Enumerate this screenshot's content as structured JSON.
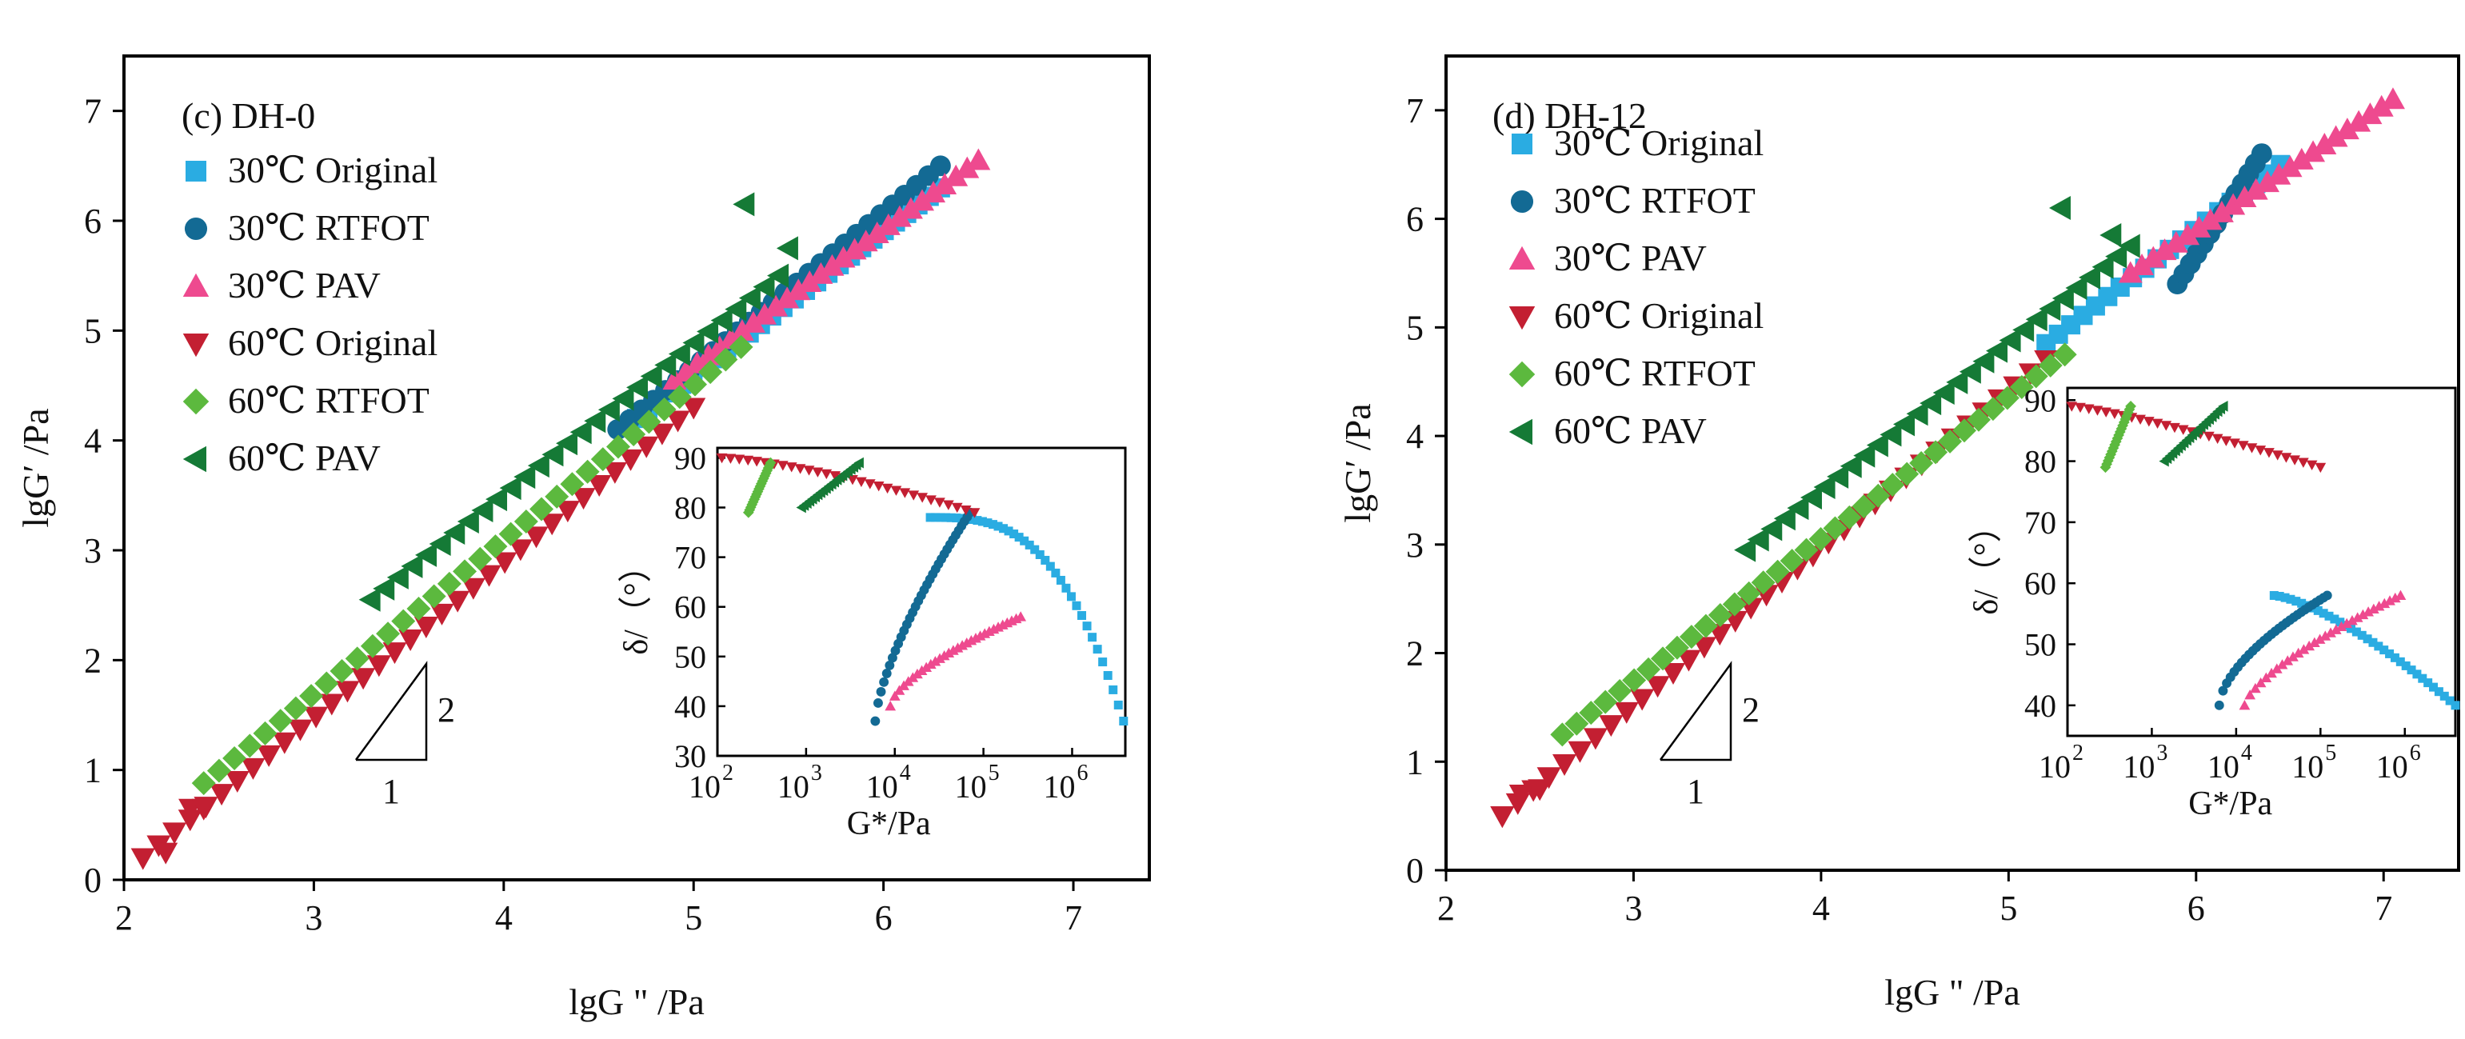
{
  "chart_data": [
    {
      "type": "scatter",
      "panel_label": "(c)  DH-0",
      "xlabel": "lgG \" /Pa",
      "ylabel": "lgG′  /Pa",
      "xlim": [
        2.0,
        7.4
      ],
      "ylim": [
        0,
        7.5
      ],
      "xticks": [
        2,
        3,
        4,
        5,
        6,
        7
      ],
      "yticks": [
        0,
        1,
        2,
        3,
        4,
        5,
        6,
        7
      ],
      "slope_triangle": {
        "rise_label": "2",
        "run_label": "1"
      },
      "legend": [
        "30℃ Original",
        "30℃ RTFOT",
        "30℃ PAV",
        "60℃ Original",
        "60℃ RTFOT",
        "60℃ PAV"
      ],
      "series": [
        {
          "name": "30℃ Original",
          "color": "#2aace2",
          "marker": "square",
          "x_start": 4.7,
          "x_end": 6.3,
          "y_start": 4.2,
          "y_end": 6.3,
          "n": 28
        },
        {
          "name": "30℃ RTFOT",
          "color": "#136a94",
          "marker": "circle",
          "x_start": 4.6,
          "x_end": 6.3,
          "y_start": 4.1,
          "y_end": 6.5,
          "n": 28
        },
        {
          "name": "30℃ PAV",
          "color": "#ee4a8f",
          "marker": "triangle-up",
          "x_start": 4.9,
          "x_end": 6.5,
          "y_start": 4.55,
          "y_end": 6.55,
          "n": 28
        },
        {
          "name": "60℃ Original",
          "color": "#c31f32",
          "marker": "triangle-down",
          "x_start": 2.1,
          "x_end": 5.0,
          "y_start": 0.2,
          "y_end": 4.3,
          "n": 36,
          "extra": [
            [
              2.1,
              0.2
            ],
            [
              2.22,
              0.25
            ],
            [
              2.35,
              0.65
            ],
            [
              2.42,
              0.65
            ]
          ]
        },
        {
          "name": "60℃ RTFOT",
          "color": "#5cb93e",
          "marker": "diamond",
          "x_start": 2.42,
          "x_end": 5.25,
          "y_start": 0.88,
          "y_end": 4.85,
          "n": 36
        },
        {
          "name": "60℃ PAV",
          "color": "#157a36",
          "marker": "triangle-left",
          "x_start": 3.3,
          "x_end": 5.45,
          "y_start": 2.55,
          "y_end": 5.5,
          "n": 30,
          "extra": [
            [
              5.27,
              6.15
            ],
            [
              5.5,
              5.75
            ]
          ]
        }
      ],
      "inset": {
        "xlabel": "G*/Pa",
        "ylabel": "δ/（°）",
        "xlog_range": [
          2,
          6.6
        ],
        "ylim": [
          30,
          92
        ],
        "yticks": [
          30,
          40,
          50,
          60,
          70,
          80,
          90
        ],
        "xtick_labels": [
          {
            "base": "10",
            "exp": "2"
          },
          {
            "base": "10",
            "exp": "3"
          },
          {
            "base": "10",
            "exp": "4"
          },
          {
            "base": "10",
            "exp": "5"
          },
          {
            "base": "10",
            "exp": "6"
          }
        ],
        "series": [
          {
            "name": "30℃ Original",
            "color": "#2aace2",
            "marker": "square",
            "logx_start": 4.4,
            "logx_end": 6.58,
            "y_start": 78,
            "y_end": 37,
            "curve": 3.0,
            "n": 38
          },
          {
            "name": "30℃ RTFOT",
            "color": "#136a94",
            "marker": "circle",
            "logx_start": 3.78,
            "logx_end": 4.85,
            "y_start": 37,
            "y_end": 79,
            "curve": 0.7,
            "n": 34
          },
          {
            "name": "30℃ PAV",
            "color": "#ee4a8f",
            "marker": "triangle-up",
            "logx_start": 3.95,
            "logx_end": 5.42,
            "y_start": 40,
            "y_end": 58,
            "curve": 0.65,
            "n": 30
          },
          {
            "name": "60℃ Original",
            "color": "#c31f32",
            "marker": "triangle-down",
            "logx_start": 2.05,
            "logx_end": 4.9,
            "y_start": 90,
            "y_end": 79,
            "curve": 1.4,
            "n": 30
          },
          {
            "name": "60℃ RTFOT",
            "color": "#5cb93e",
            "marker": "diamond",
            "logx_start": 2.35,
            "logx_end": 2.6,
            "y_start": 79,
            "y_end": 89,
            "curve": 1.0,
            "n": 20
          },
          {
            "name": "60℃ PAV",
            "color": "#157a36",
            "marker": "triangle-left",
            "logx_start": 2.95,
            "logx_end": 3.6,
            "y_start": 80,
            "y_end": 89,
            "curve": 1.0,
            "n": 22
          }
        ]
      }
    },
    {
      "type": "scatter",
      "panel_label": "(d) DH-12",
      "xlabel": "lgG \" /Pa",
      "ylabel": "lgG′  /Pa",
      "xlim": [
        2.0,
        7.4
      ],
      "ylim": [
        0,
        7.5
      ],
      "xticks": [
        2,
        3,
        4,
        5,
        6,
        7
      ],
      "yticks": [
        0,
        1,
        2,
        3,
        4,
        5,
        6,
        7
      ],
      "slope_triangle": {
        "rise_label": "2",
        "run_label": "1"
      },
      "legend": [
        "30℃ Original",
        "30℃ RTFOT",
        "30℃ PAV",
        "60℃ Original",
        "60℃ RTFOT",
        "60℃ PAV"
      ],
      "series": [
        {
          "name": "30℃ Original",
          "color": "#2aace2",
          "marker": "square",
          "x_start": 5.2,
          "x_end": 6.45,
          "y_start": 4.85,
          "y_end": 6.5,
          "n": 20
        },
        {
          "name": "30℃ RTFOT",
          "color": "#136a94",
          "marker": "circle",
          "x_start": 5.9,
          "x_end": 6.35,
          "y_start": 5.4,
          "y_end": 6.6,
          "n": 14
        },
        {
          "name": "30℃ PAV",
          "color": "#ee4a8f",
          "marker": "triangle-up",
          "x_start": 5.65,
          "x_end": 7.05,
          "y_start": 5.5,
          "y_end": 7.1,
          "n": 24
        },
        {
          "name": "60℃ Original",
          "color": "#c31f32",
          "marker": "triangle-down",
          "x_start": 2.3,
          "x_end": 5.2,
          "y_start": 0.5,
          "y_end": 4.7,
          "n": 36,
          "extra": [
            [
              2.3,
              0.5
            ],
            [
              2.4,
              0.7
            ],
            [
              2.5,
              0.75
            ]
          ]
        },
        {
          "name": "60℃ RTFOT",
          "color": "#5cb93e",
          "marker": "diamond",
          "x_start": 2.62,
          "x_end": 5.3,
          "y_start": 1.25,
          "y_end": 4.75,
          "n": 36
        },
        {
          "name": "60℃ PAV",
          "color": "#157a36",
          "marker": "triangle-left",
          "x_start": 3.6,
          "x_end": 5.65,
          "y_start": 2.95,
          "y_end": 5.75,
          "n": 30,
          "extra": [
            [
              5.28,
              6.1
            ],
            [
              5.55,
              5.85
            ]
          ]
        }
      ],
      "inset": {
        "xlabel": "G*/Pa",
        "ylabel": "δ/（°）",
        "xlog_range": [
          2,
          6.6
        ],
        "ylim": [
          35,
          92
        ],
        "yticks": [
          40,
          50,
          60,
          70,
          80,
          90
        ],
        "xtick_labels": [
          {
            "base": "10",
            "exp": "2"
          },
          {
            "base": "10",
            "exp": "3"
          },
          {
            "base": "10",
            "exp": "4"
          },
          {
            "base": "10",
            "exp": "5"
          },
          {
            "base": "10",
            "exp": "6"
          }
        ],
        "series": [
          {
            "name": "30℃ Original",
            "color": "#2aace2",
            "marker": "square",
            "logx_start": 4.45,
            "logx_end": 6.6,
            "y_start": 58,
            "y_end": 40,
            "curve": 1.4,
            "n": 34
          },
          {
            "name": "30℃ RTFOT",
            "color": "#136a94",
            "marker": "circle",
            "logx_start": 3.8,
            "logx_end": 5.08,
            "y_start": 40,
            "y_end": 58,
            "curve": 0.6,
            "n": 30
          },
          {
            "name": "30℃ PAV",
            "color": "#ee4a8f",
            "marker": "triangle-up",
            "logx_start": 4.1,
            "logx_end": 5.95,
            "y_start": 40,
            "y_end": 58,
            "curve": 0.7,
            "n": 30
          },
          {
            "name": "60℃ Original",
            "color": "#c31f32",
            "marker": "triangle-down",
            "logx_start": 2.05,
            "logx_end": 5.0,
            "y_start": 89,
            "y_end": 79,
            "curve": 1.2,
            "n": 30
          },
          {
            "name": "60℃ RTFOT",
            "color": "#5cb93e",
            "marker": "diamond",
            "logx_start": 2.45,
            "logx_end": 2.75,
            "y_start": 79,
            "y_end": 89,
            "curve": 1.0,
            "n": 20
          },
          {
            "name": "60℃ PAV",
            "color": "#157a36",
            "marker": "triangle-left",
            "logx_start": 3.15,
            "logx_end": 3.85,
            "y_start": 80,
            "y_end": 89,
            "curve": 1.0,
            "n": 22
          }
        ]
      }
    }
  ]
}
